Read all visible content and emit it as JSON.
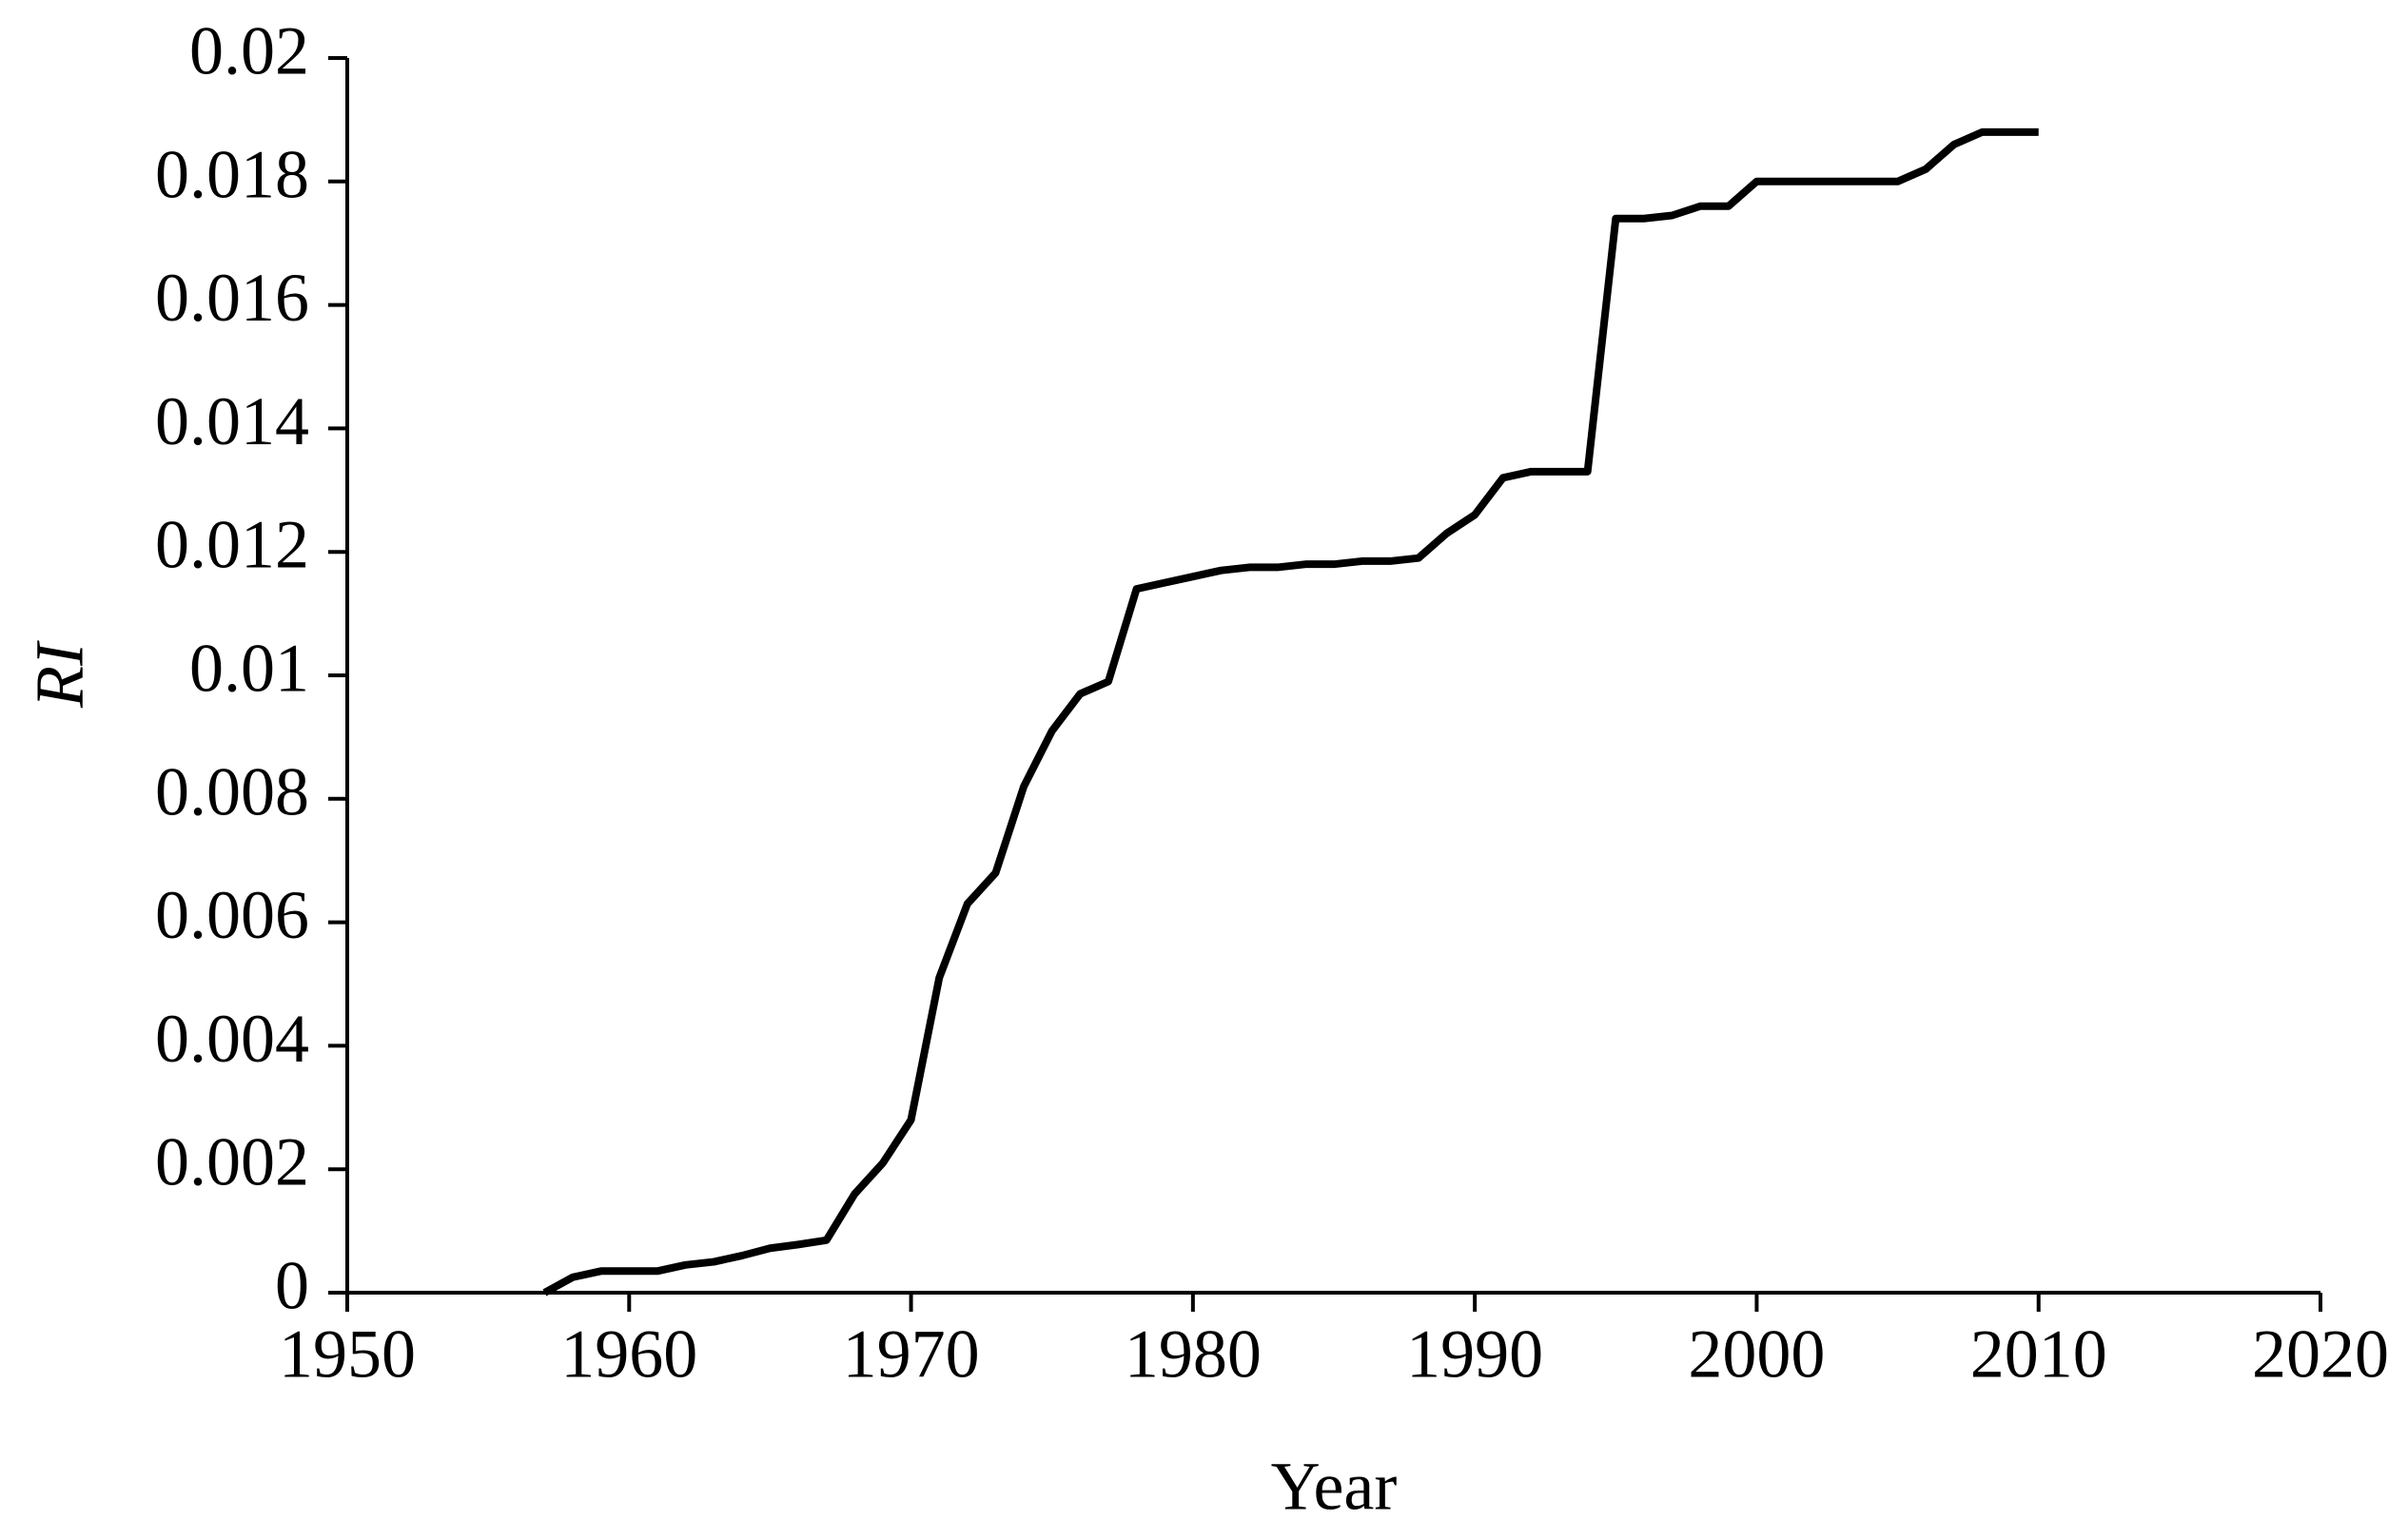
{
  "chart_data": {
    "type": "line",
    "xlabel": "Year",
    "ylabel": "RI",
    "x": [
      1957,
      1958,
      1959,
      1960,
      1961,
      1962,
      1963,
      1964,
      1965,
      1966,
      1967,
      1968,
      1969,
      1970,
      1971,
      1972,
      1973,
      1974,
      1975,
      1976,
      1977,
      1978,
      1979,
      1980,
      1981,
      1982,
      1983,
      1984,
      1985,
      1986,
      1987,
      1988,
      1989,
      1990,
      1991,
      1992,
      1993,
      1994,
      1995,
      1996,
      1997,
      1998,
      1999,
      2000,
      2001,
      2002,
      2003,
      2004,
      2005,
      2006,
      2007,
      2008,
      2009,
      2010
    ],
    "values": [
      0,
      0.00025,
      0.00035,
      0.00035,
      0.00035,
      0.00045,
      0.0005,
      0.0006,
      0.00072,
      0.00078,
      0.00085,
      0.0016,
      0.0021,
      0.0028,
      0.0051,
      0.0063,
      0.0068,
      0.0082,
      0.0091,
      0.0097,
      0.0099,
      0.0114,
      0.0115,
      0.0116,
      0.0117,
      0.01175,
      0.01175,
      0.0118,
      0.0118,
      0.01185,
      0.01185,
      0.0119,
      0.0123,
      0.0126,
      0.0132,
      0.0133,
      0.0133,
      0.0133,
      0.0174,
      0.0174,
      0.01745,
      0.0176,
      0.0176,
      0.018,
      0.018,
      0.018,
      0.018,
      0.018,
      0.018,
      0.0182,
      0.0186,
      0.0188,
      0.0188,
      0.0188
    ],
    "color": "#000000",
    "xlim": [
      1950,
      2020
    ],
    "xticks": [
      1950,
      1960,
      1970,
      1980,
      1990,
      2000,
      2010,
      2020
    ],
    "ylim": [
      0,
      0.02
    ],
    "yticks": [
      0,
      0.002,
      0.004,
      0.006,
      0.008,
      0.01,
      0.012,
      0.014,
      0.016,
      0.018,
      0.02
    ]
  }
}
